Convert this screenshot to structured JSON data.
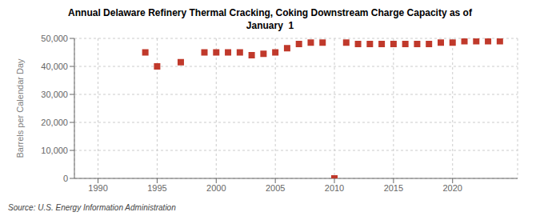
{
  "chart_data": {
    "type": "scatter",
    "title": "Annual Delaware Refinery Thermal Cracking, Coking Downstream Charge Capacity as of\nJanuary  1",
    "y_label": "Barrels per Calendar Day",
    "annotations": [
      "Source: U.S. Energy Information Administration"
    ],
    "x": [
      1994,
      1995,
      1997,
      1999,
      2000,
      2001,
      2002,
      2003,
      2004,
      2005,
      2006,
      2007,
      2008,
      2009,
      2010,
      2011,
      2012,
      2013,
      2014,
      2015,
      2016,
      2017,
      2018,
      2019,
      2020,
      2021,
      2022,
      2023,
      2024
    ],
    "values": [
      45000,
      40000,
      41500,
      45000,
      45000,
      45000,
      45000,
      44000,
      44500,
      45000,
      46500,
      48000,
      48500,
      48500,
      0,
      48500,
      48000,
      48000,
      48000,
      48000,
      48000,
      48000,
      48000,
      48500,
      48500,
      49000,
      49000,
      49000,
      49000
    ],
    "color": "#c0392b",
    "marker": "square",
    "xlim": [
      1988,
      2025.5
    ],
    "ylim": [
      0,
      50000
    ],
    "xticks": [
      1990,
      1995,
      2000,
      2005,
      2010,
      2015,
      2020
    ],
    "yticks": [
      0,
      {
        "value": 10000,
        "label": "10,000"
      },
      {
        "value": 20000,
        "label": "20,000"
      },
      {
        "value": 30000,
        "label": "30,000"
      },
      {
        "value": 40000,
        "label": "40,000"
      },
      {
        "value": 50000,
        "label": "50,000"
      }
    ],
    "grid": true
  }
}
